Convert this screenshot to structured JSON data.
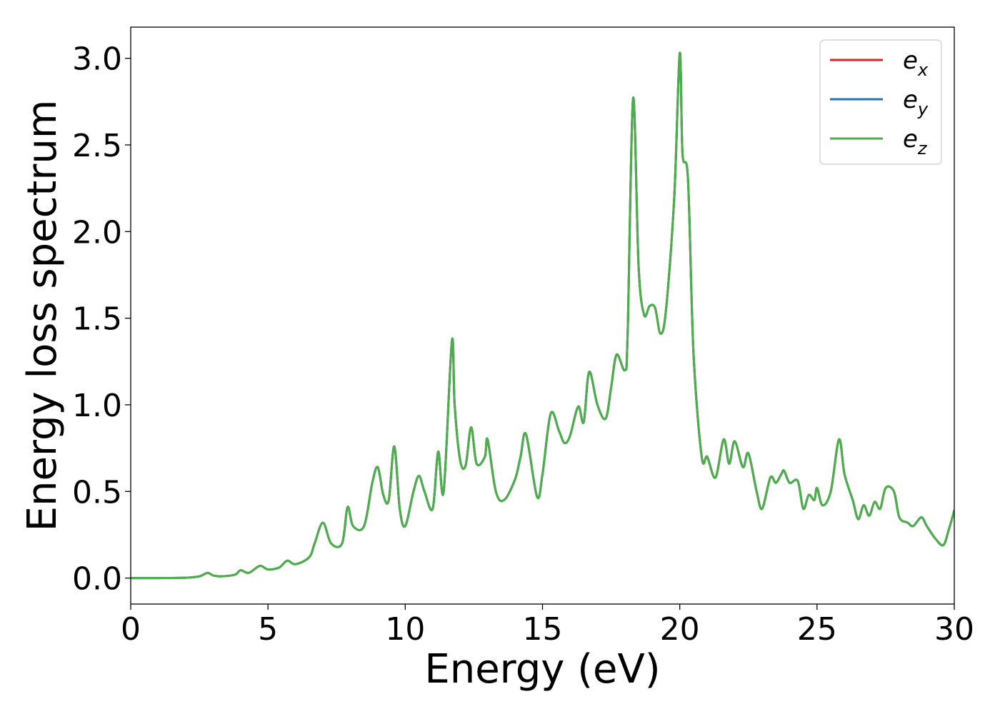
{
  "chart_data": {
    "type": "line",
    "title": "",
    "xlabel": "Energy (eV)",
    "ylabel": "Energy loss spectrum",
    "xlim": [
      0,
      30
    ],
    "ylim": [
      -0.15,
      3.18
    ],
    "x_ticks": [
      0,
      5,
      10,
      15,
      20,
      25,
      30
    ],
    "x_tick_labels": [
      "0",
      "5",
      "10",
      "15",
      "20",
      "25",
      "30"
    ],
    "y_ticks": [
      0.0,
      0.5,
      1.0,
      1.5,
      2.0,
      2.5,
      3.0
    ],
    "y_tick_labels": [
      "0.0",
      "0.5",
      "1.0",
      "1.5",
      "2.0",
      "2.5",
      "3.0"
    ],
    "grid": false,
    "legend": {
      "position": "top-right",
      "entries": [
        {
          "base": "e",
          "sub": "x",
          "color": "#d62728"
        },
        {
          "base": "e",
          "sub": "y",
          "color": "#1f77b4"
        },
        {
          "base": "e",
          "sub": "z",
          "color": "#4daf4a"
        }
      ]
    },
    "x": [
      0,
      1,
      2,
      2.5,
      2.8,
      3.0,
      3.3,
      3.8,
      4.0,
      4.3,
      4.7,
      5.0,
      5.4,
      5.7,
      6.0,
      6.5,
      6.7,
      7.0,
      7.3,
      7.7,
      7.9,
      8.1,
      8.5,
      8.8,
      9.0,
      9.2,
      9.4,
      9.6,
      9.8,
      10.0,
      10.3,
      10.5,
      10.7,
      11.0,
      11.2,
      11.4,
      11.7,
      11.8,
      12.0,
      12.2,
      12.4,
      12.6,
      12.9,
      13.0,
      13.3,
      13.6,
      14.0,
      14.2,
      14.4,
      14.8,
      15.0,
      15.3,
      15.6,
      15.8,
      16.0,
      16.3,
      16.5,
      16.7,
      17.0,
      17.3,
      17.5,
      17.7,
      18.0,
      18.1,
      18.3,
      18.5,
      18.7,
      18.9,
      19.1,
      19.3,
      19.5,
      19.8,
      20.0,
      20.1,
      20.3,
      20.5,
      20.8,
      21.0,
      21.3,
      21.6,
      21.8,
      22.0,
      22.3,
      22.5,
      22.8,
      23.0,
      23.3,
      23.5,
      23.7,
      23.8,
      24.0,
      24.3,
      24.5,
      24.7,
      24.9,
      25.0,
      25.2,
      25.5,
      25.8,
      26.0,
      26.3,
      26.5,
      26.7,
      26.9,
      27.1,
      27.3,
      27.5,
      27.8,
      28.0,
      28.3,
      28.5,
      28.8,
      29.0,
      29.3,
      29.6,
      29.8,
      30.0
    ],
    "series": [
      {
        "name": "e_x",
        "color": "#d62728",
        "y": [
          0,
          0,
          0.002,
          0.01,
          0.03,
          0.015,
          0.01,
          0.02,
          0.045,
          0.03,
          0.07,
          0.05,
          0.06,
          0.1,
          0.08,
          0.12,
          0.2,
          0.32,
          0.2,
          0.2,
          0.41,
          0.3,
          0.3,
          0.55,
          0.64,
          0.48,
          0.45,
          0.76,
          0.4,
          0.3,
          0.5,
          0.59,
          0.5,
          0.4,
          0.73,
          0.5,
          1.37,
          1.0,
          0.68,
          0.65,
          0.87,
          0.66,
          0.7,
          0.8,
          0.5,
          0.45,
          0.57,
          0.7,
          0.83,
          0.47,
          0.6,
          0.95,
          0.85,
          0.78,
          0.82,
          0.99,
          0.9,
          1.19,
          1.0,
          0.92,
          1.1,
          1.29,
          1.2,
          1.4,
          2.77,
          1.8,
          1.52,
          1.57,
          1.56,
          1.41,
          1.55,
          2.2,
          3.03,
          2.45,
          2.3,
          1.3,
          0.7,
          0.7,
          0.58,
          0.8,
          0.66,
          0.79,
          0.64,
          0.72,
          0.5,
          0.4,
          0.58,
          0.55,
          0.6,
          0.62,
          0.55,
          0.56,
          0.4,
          0.48,
          0.45,
          0.52,
          0.42,
          0.5,
          0.8,
          0.6,
          0.45,
          0.34,
          0.42,
          0.36,
          0.44,
          0.4,
          0.52,
          0.5,
          0.35,
          0.32,
          0.3,
          0.35,
          0.3,
          0.23,
          0.19,
          0.28,
          0.39
        ]
      },
      {
        "name": "e_y",
        "color": "#1f77b4",
        "y": [
          0,
          0,
          0.002,
          0.01,
          0.03,
          0.015,
          0.01,
          0.02,
          0.045,
          0.03,
          0.07,
          0.05,
          0.06,
          0.1,
          0.08,
          0.12,
          0.2,
          0.32,
          0.2,
          0.2,
          0.41,
          0.3,
          0.3,
          0.55,
          0.64,
          0.48,
          0.45,
          0.76,
          0.4,
          0.3,
          0.5,
          0.59,
          0.5,
          0.4,
          0.73,
          0.5,
          1.37,
          1.0,
          0.68,
          0.65,
          0.87,
          0.66,
          0.7,
          0.8,
          0.5,
          0.45,
          0.57,
          0.7,
          0.83,
          0.47,
          0.6,
          0.95,
          0.85,
          0.78,
          0.82,
          0.99,
          0.9,
          1.19,
          1.0,
          0.92,
          1.1,
          1.29,
          1.2,
          1.4,
          2.77,
          1.8,
          1.52,
          1.57,
          1.56,
          1.41,
          1.55,
          2.2,
          3.03,
          2.45,
          2.3,
          1.3,
          0.7,
          0.7,
          0.58,
          0.8,
          0.66,
          0.79,
          0.64,
          0.72,
          0.5,
          0.4,
          0.58,
          0.55,
          0.6,
          0.62,
          0.55,
          0.56,
          0.4,
          0.48,
          0.45,
          0.52,
          0.42,
          0.5,
          0.8,
          0.6,
          0.45,
          0.34,
          0.42,
          0.36,
          0.44,
          0.4,
          0.52,
          0.5,
          0.35,
          0.32,
          0.3,
          0.35,
          0.3,
          0.23,
          0.19,
          0.28,
          0.39
        ]
      },
      {
        "name": "e_z",
        "color": "#4daf4a",
        "y": [
          0,
          0,
          0.002,
          0.01,
          0.03,
          0.015,
          0.01,
          0.02,
          0.045,
          0.03,
          0.07,
          0.05,
          0.06,
          0.1,
          0.08,
          0.12,
          0.2,
          0.32,
          0.2,
          0.2,
          0.41,
          0.3,
          0.3,
          0.55,
          0.64,
          0.48,
          0.45,
          0.76,
          0.4,
          0.3,
          0.5,
          0.59,
          0.5,
          0.4,
          0.73,
          0.5,
          1.37,
          1.0,
          0.68,
          0.65,
          0.87,
          0.66,
          0.7,
          0.8,
          0.5,
          0.45,
          0.57,
          0.7,
          0.83,
          0.47,
          0.6,
          0.95,
          0.85,
          0.78,
          0.82,
          0.99,
          0.9,
          1.19,
          1.0,
          0.92,
          1.1,
          1.29,
          1.2,
          1.4,
          2.77,
          1.8,
          1.52,
          1.57,
          1.56,
          1.41,
          1.55,
          2.2,
          3.03,
          2.45,
          2.3,
          1.3,
          0.7,
          0.7,
          0.58,
          0.8,
          0.66,
          0.79,
          0.64,
          0.72,
          0.5,
          0.4,
          0.58,
          0.55,
          0.6,
          0.62,
          0.55,
          0.56,
          0.4,
          0.48,
          0.45,
          0.52,
          0.42,
          0.5,
          0.8,
          0.6,
          0.45,
          0.34,
          0.42,
          0.36,
          0.44,
          0.4,
          0.52,
          0.5,
          0.35,
          0.32,
          0.3,
          0.35,
          0.3,
          0.23,
          0.19,
          0.28,
          0.39
        ]
      }
    ]
  }
}
